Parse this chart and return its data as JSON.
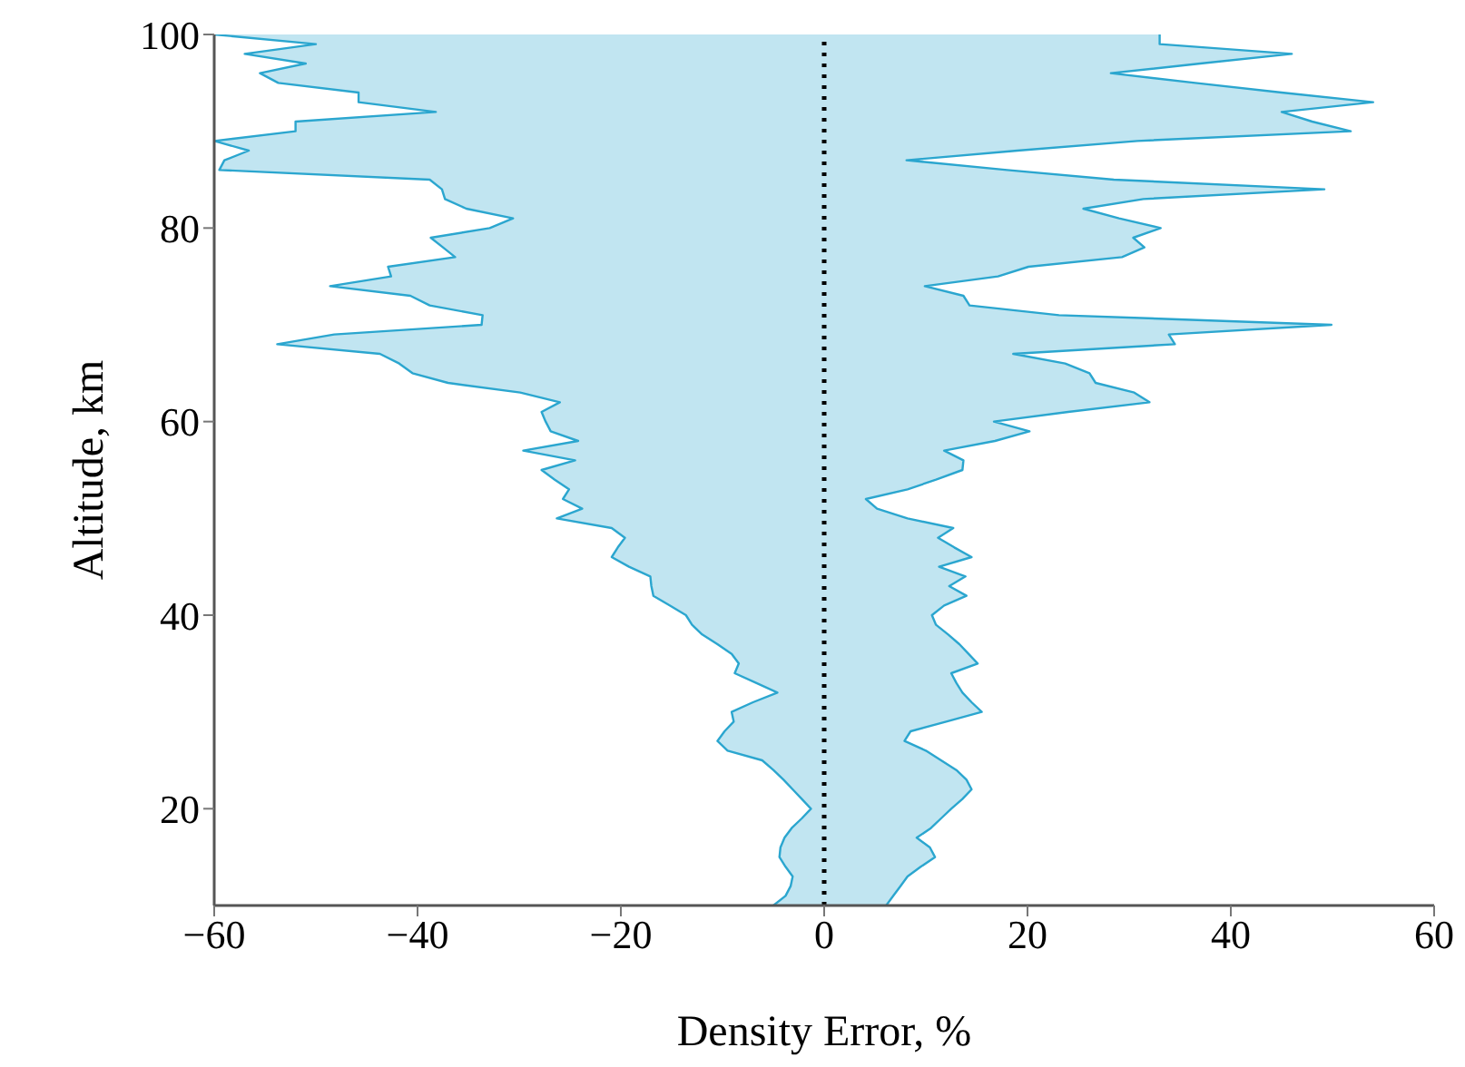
{
  "chart_data": {
    "type": "area",
    "orientation": "horizontal",
    "xlabel": "Density Error, %",
    "ylabel": "Altitude, km",
    "xlim": [
      -60,
      60
    ],
    "xticks": [
      -60,
      -40,
      -20,
      0,
      20,
      40,
      60
    ],
    "ylim": [
      10,
      100
    ],
    "yticks": [
      20,
      40,
      60,
      80,
      100
    ],
    "x": [
      10,
      11,
      12,
      13,
      14,
      15,
      16,
      17,
      18,
      19,
      20,
      21,
      22,
      23,
      24,
      25,
      26,
      27,
      28,
      29,
      30,
      31,
      32,
      33,
      34,
      35,
      36,
      37,
      38,
      39,
      40,
      41,
      42,
      43,
      44,
      45,
      46,
      47,
      48,
      49,
      50,
      51,
      52,
      53,
      54,
      55,
      56,
      57,
      58,
      59,
      60,
      61,
      62,
      63,
      64,
      65,
      66,
      67,
      68,
      69,
      70,
      71,
      72,
      73,
      74,
      75,
      76,
      77,
      78,
      79,
      80,
      81,
      82,
      83,
      84,
      85,
      86,
      87,
      88,
      89,
      90,
      91,
      92,
      93,
      94,
      95,
      96,
      97,
      98,
      99,
      100
    ],
    "series": [
      {
        "color": "#2ba6cf",
        "values": [
          -5,
          -3.8,
          -3.3,
          -3.1,
          -3.8,
          -4.4,
          -4.3,
          -3.9,
          -3.2,
          -2.2,
          -1.3,
          -2.2,
          -3.1,
          -4,
          -5,
          -6.1,
          -9.5,
          -10.5,
          -9.8,
          -8.9,
          -9.1,
          -7,
          -4.6,
          -6.7,
          -8.8,
          -8.4,
          -9.1,
          -10.5,
          -12,
          -13,
          -13.6,
          -15.2,
          -16.8,
          -17,
          -17.1,
          -19.2,
          -20.9,
          -20.3,
          -19.6,
          -20.9,
          -26.3,
          -23.8,
          -25.7,
          -25.1,
          -26.5,
          -27.8,
          -24.5,
          -29.6,
          -24.2,
          -26.9,
          -27.4,
          -27.8,
          -26,
          -29.9,
          -37,
          -40.5,
          -41.8,
          -43.7,
          -53.8,
          -48.2,
          -33.7,
          -33.6,
          -38.8,
          -40.7,
          -48.6,
          -42.6,
          -42.9,
          -36.3,
          -37.5,
          -38.7,
          -32.9,
          -30.6,
          -35.2,
          -37.3,
          -37.6,
          -38.8,
          -59.5,
          -59,
          -56.6,
          -60,
          -52,
          -52,
          -38.2,
          -45.8,
          -45.8,
          -53.7,
          -55.5,
          -51,
          -57,
          -50,
          -60
        ]
      },
      {
        "color": "#2ba6cf",
        "values": [
          6.1,
          6.8,
          7.5,
          8.2,
          9.5,
          10.9,
          10.4,
          9.1,
          10.5,
          11.5,
          12.5,
          13.6,
          14.5,
          14,
          13,
          11.5,
          10,
          7.9,
          8.5,
          12,
          15.5,
          14.5,
          13.6,
          13,
          12.5,
          15.1,
          14.2,
          13.3,
          12.2,
          11,
          10.6,
          11.8,
          14,
          12.3,
          13.9,
          11.3,
          14.5,
          12.8,
          11.2,
          12.7,
          8.2,
          5.2,
          4.1,
          8.2,
          11,
          13.6,
          13.7,
          11.8,
          16.8,
          20.2,
          16.7,
          24,
          32,
          30.5,
          26.7,
          26.1,
          23.7,
          18.6,
          34.5,
          33.9,
          49.9,
          23.1,
          14.3,
          13.7,
          9.9,
          17.1,
          20.1,
          29.3,
          31.5,
          30.4,
          33.1,
          29,
          25.5,
          31.4,
          49.2,
          28.5,
          18,
          8.1,
          19,
          30.8,
          51.8,
          48,
          45,
          54,
          45,
          36.5,
          28.2,
          37,
          46,
          33,
          33
        ]
      }
    ],
    "ref_lines": [
      {
        "axis": "x",
        "value": 0,
        "color": "#000000",
        "line_style": "dotted"
      }
    ]
  }
}
